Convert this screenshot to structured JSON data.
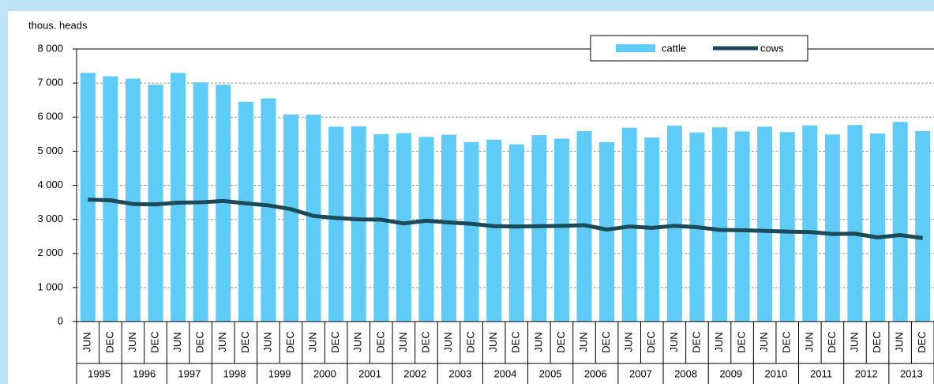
{
  "chart_data": {
    "type": "bar-line",
    "y_label": "thous. heads",
    "categories": [
      "JUN",
      "DEC",
      "JUN",
      "DEC",
      "JUN",
      "DEC",
      "JUN",
      "DEC",
      "JUN",
      "DEC",
      "JUN",
      "DEC",
      "JUN",
      "DEC",
      "JUN",
      "DEC",
      "JUN",
      "DEC",
      "JUN",
      "DEC",
      "JUN",
      "DEC",
      "JUN",
      "DEC",
      "JUN",
      "DEC",
      "JUN",
      "DEC",
      "JUN",
      "DEC",
      "JUN",
      "DEC",
      "JUN",
      "DEC",
      "JUN",
      "DEC",
      "JUN",
      "DEC"
    ],
    "groups": [
      "1995",
      "1996",
      "1997",
      "1998",
      "1999",
      "2000",
      "2001",
      "2002",
      "2003",
      "2004",
      "2005",
      "2006",
      "2007",
      "2008",
      "2009",
      "2010",
      "2011",
      "2012",
      "2013"
    ],
    "series": [
      {
        "name": "cattle",
        "type": "bar",
        "color": "#5fcbf7",
        "values": [
          7300,
          7200,
          7130,
          6950,
          7300,
          7020,
          6950,
          6450,
          6550,
          6080,
          6070,
          5720,
          5730,
          5500,
          5530,
          5420,
          5480,
          5270,
          5340,
          5200,
          5470,
          5370,
          5590,
          5270,
          5690,
          5400,
          5750,
          5550,
          5700,
          5580,
          5720,
          5560,
          5760,
          5490,
          5770,
          5520,
          5860,
          5590
        ]
      },
      {
        "name": "cows",
        "type": "line",
        "color": "#1c4a58",
        "values": [
          3580,
          3560,
          3450,
          3440,
          3490,
          3500,
          3540,
          3470,
          3410,
          3300,
          3100,
          3040,
          3000,
          2990,
          2880,
          2960,
          2910,
          2870,
          2800,
          2790,
          2800,
          2810,
          2830,
          2700,
          2790,
          2750,
          2810,
          2770,
          2690,
          2680,
          2660,
          2640,
          2630,
          2570,
          2580,
          2470,
          2540,
          2450
        ]
      }
    ],
    "ylim": [
      0,
      8000
    ],
    "yticks": [
      {
        "value": 0,
        "label": "0"
      },
      {
        "value": 1000,
        "label": "1 000"
      },
      {
        "value": 2000,
        "label": "2 000"
      },
      {
        "value": 3000,
        "label": "3 000"
      },
      {
        "value": 4000,
        "label": "4 000"
      },
      {
        "value": 5000,
        "label": "5 000"
      },
      {
        "value": 6000,
        "label": "6 000"
      },
      {
        "value": 7000,
        "label": "7 000"
      },
      {
        "value": 8000,
        "label": "8 000"
      }
    ],
    "grid": true
  }
}
